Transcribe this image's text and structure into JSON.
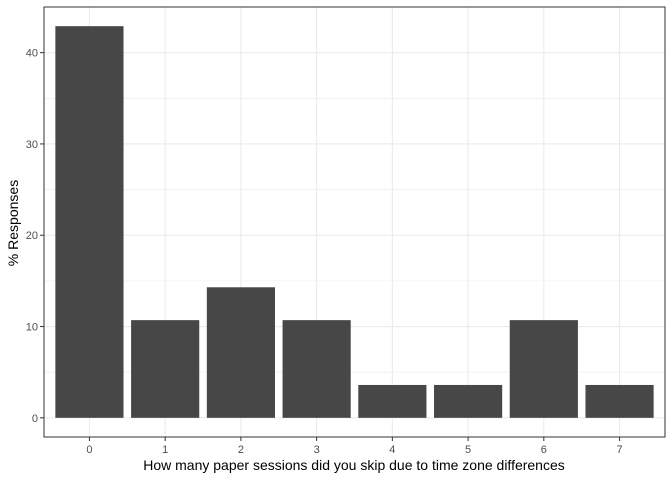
{
  "chart_data": {
    "type": "bar",
    "title": "",
    "xlabel": "How many paper sessions did you skip due to time zone differences",
    "ylabel": "% Responses",
    "categories": [
      "0",
      "1",
      "2",
      "3",
      "4",
      "5",
      "6",
      "7"
    ],
    "values": [
      42.9,
      10.7,
      14.3,
      10.7,
      3.6,
      3.6,
      10.7,
      3.6
    ],
    "ylim": [
      -2.1,
      45.0
    ],
    "yticks": [
      0,
      10,
      20,
      30,
      40
    ],
    "grid": true,
    "bar_color": "#474747",
    "grid_color": "#ebebeb",
    "panel_border_color": "#333333"
  }
}
